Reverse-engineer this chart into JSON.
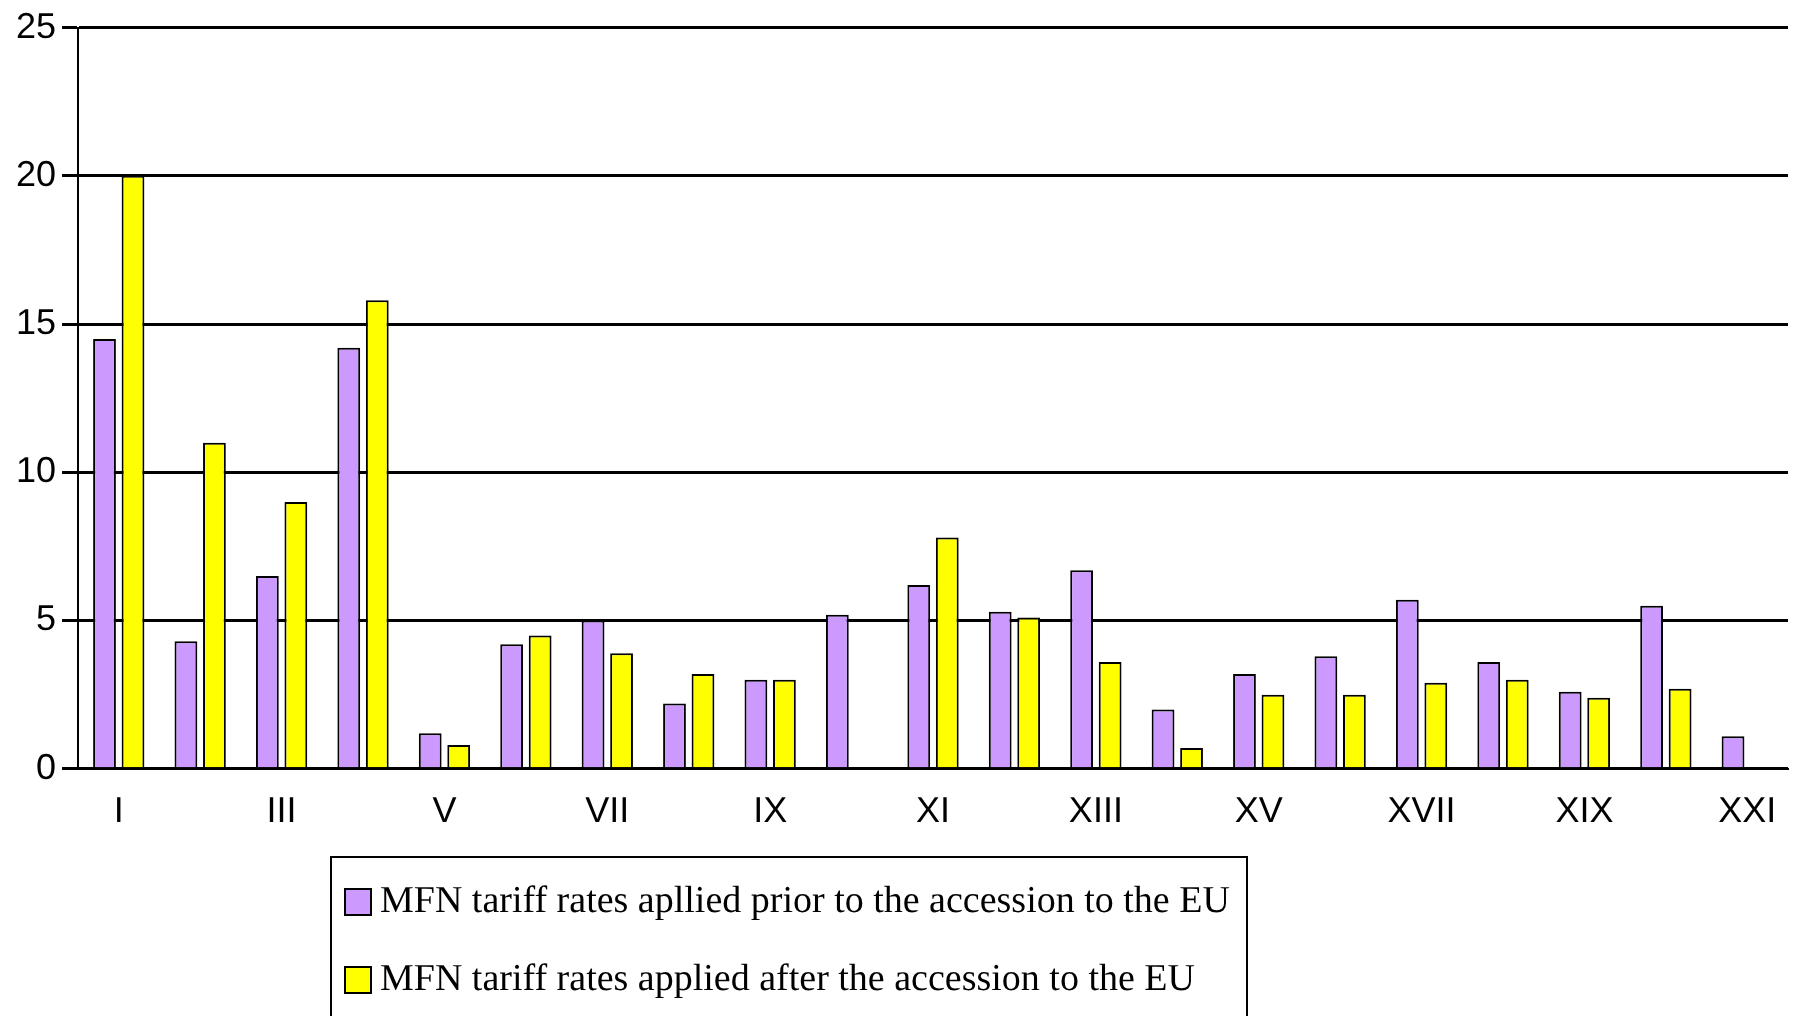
{
  "chart_data": {
    "type": "bar",
    "categories": [
      "I",
      null,
      "III",
      null,
      "V",
      null,
      "VII",
      null,
      "IX",
      null,
      "XI",
      null,
      "XIII",
      null,
      "XV",
      null,
      "XVII",
      null,
      "XIX",
      null,
      "XXI"
    ],
    "series": [
      {
        "name": "MFN tariff rates apllied prior to the accession to the EU",
        "color": "#cc99ff",
        "values": [
          14.5,
          4.3,
          6.5,
          14.2,
          1.2,
          4.2,
          5,
          2.2,
          3,
          5.2,
          6.2,
          5.3,
          6.7,
          2,
          3.2,
          3.8,
          5.7,
          3.6,
          2.6,
          5.5,
          1.1
        ]
      },
      {
        "name": "MFN tariff rates applied after the accession to the EU",
        "color": "#ffff00",
        "values": [
          20,
          11,
          9,
          15.8,
          0.8,
          4.5,
          3.9,
          3.2,
          3,
          0,
          7.8,
          5.1,
          3.6,
          0.7,
          2.5,
          2.5,
          2.9,
          3,
          2.4,
          2.7,
          0
        ]
      }
    ],
    "ylim": [
      0,
      25
    ],
    "yticks": [
      0,
      5,
      10,
      15,
      20,
      25
    ],
    "grid": "y",
    "legend": "bottom"
  }
}
